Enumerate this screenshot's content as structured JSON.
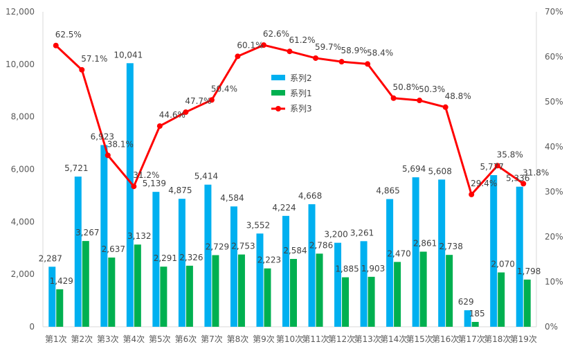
{
  "chart_data": {
    "type": "bar",
    "categories": [
      "第1次",
      "第2次",
      "第3次",
      "第4次",
      "第5次",
      "第6次",
      "第7次",
      "第8次",
      "第9次",
      "第10次",
      "第11次",
      "第12次",
      "第13次",
      "第14次",
      "第15次",
      "第16次",
      "第17次",
      "第18次",
      "第19次"
    ],
    "series": [
      {
        "name": "系列2",
        "type": "bar",
        "axis": "left",
        "color": "#00B0F0",
        "values": [
          2287,
          5721,
          6923,
          10041,
          5139,
          4875,
          5414,
          4584,
          3552,
          4224,
          4668,
          3200,
          3261,
          4865,
          5694,
          5608,
          629,
          5777,
          5336
        ],
        "labels": [
          "2,287",
          "5,721",
          "6,923",
          "10,041",
          "5,139",
          "4,875",
          "5,414",
          "4,584",
          "3,552",
          "4,224",
          "4,668",
          "3,200",
          "3,261",
          "4,865",
          "5,694",
          "5,608",
          "629",
          "5,777",
          "5,336"
        ]
      },
      {
        "name": "系列1",
        "type": "bar",
        "axis": "left",
        "color": "#00B050",
        "values": [
          1429,
          3267,
          2637,
          3132,
          2291,
          2326,
          2729,
          2753,
          2223,
          2584,
          2786,
          1885,
          1903,
          2470,
          2861,
          2738,
          185,
          2070,
          1798
        ],
        "labels": [
          "1,429",
          "3,267",
          "2,637",
          "3,132",
          "2,291",
          "2,326",
          "2,729",
          "2,753",
          "2,223",
          "2,584",
          "2,786",
          "1,885",
          "1,903",
          "2,470",
          "2,861",
          "2,738",
          "185",
          "2,070",
          "1,798"
        ]
      },
      {
        "name": "系列3",
        "type": "line",
        "axis": "right",
        "color": "#FF0000",
        "values": [
          62.5,
          57.1,
          38.1,
          31.2,
          44.6,
          47.7,
          50.4,
          60.1,
          62.6,
          61.2,
          59.7,
          58.9,
          58.4,
          50.8,
          50.3,
          48.8,
          29.4,
          35.8,
          31.8
        ],
        "labels": [
          "62.5%",
          "57.1%",
          "38.1%",
          "31.2%",
          "44.6%",
          "47.7%",
          "50.4%",
          "60.1%",
          "62.6%",
          "61.2%",
          "59.7%",
          "58.9%",
          "58.4%",
          "50.8%",
          "50.3%",
          "48.8%",
          "29.4%",
          "35.8%",
          "31.8%"
        ]
      }
    ],
    "y_left": {
      "min": 0,
      "max": 12000,
      "step": 2000,
      "ticks": [
        "0",
        "2,000",
        "4,000",
        "6,000",
        "8,000",
        "10,000",
        "12,000"
      ]
    },
    "y_right": {
      "min": 0,
      "max": 70,
      "step": 10,
      "ticks": [
        "0%",
        "10%",
        "20%",
        "30%",
        "40%",
        "50%",
        "60%",
        "70%"
      ]
    },
    "legend": [
      "系列2",
      "系列1",
      "系列3"
    ],
    "legend_position": "inside-top-center",
    "grid": false,
    "title": "",
    "xlabel": "",
    "ylabel": ""
  }
}
